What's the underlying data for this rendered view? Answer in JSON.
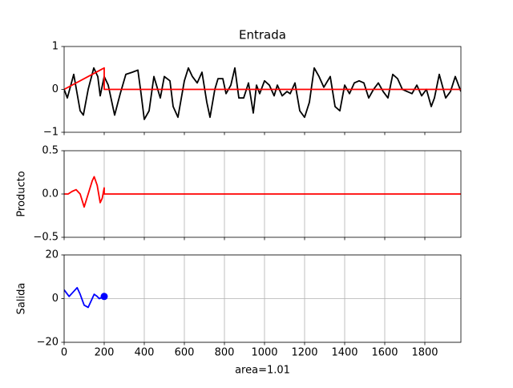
{
  "chart_data": [
    {
      "type": "line",
      "title": "Entrada",
      "xlim": [
        0,
        1980
      ],
      "xticks": [
        0,
        200,
        400,
        600,
        800,
        1000,
        1200,
        1400,
        1600,
        1800
      ],
      "show_xticklabels": false,
      "ylim": [
        -1,
        1
      ],
      "yticks": [
        {
          "value": -1,
          "label": "−1"
        },
        0,
        1
      ],
      "grid": "none",
      "series": [
        {
          "color": "#000000",
          "x": [
            0,
            16,
            48,
            80,
            96,
            120,
            148,
            168,
            180,
            200,
            220,
            252,
            280,
            308,
            340,
            368,
            384,
            400,
            424,
            448,
            480,
            500,
            528,
            544,
            568,
            600,
            620,
            640,
            664,
            688,
            712,
            728,
            752,
            768,
            792,
            808,
            832,
            852,
            872,
            896,
            920,
            944,
            960,
            976,
            1000,
            1024,
            1048,
            1064,
            1088,
            1112,
            1128,
            1152,
            1176,
            1200,
            1224,
            1248,
            1272,
            1296,
            1328,
            1352,
            1376,
            1400,
            1424,
            1448,
            1472,
            1496,
            1520,
            1544,
            1568,
            1592,
            1616,
            1640,
            1664,
            1688,
            1712,
            1736,
            1760,
            1784,
            1808,
            1832,
            1848,
            1872,
            1904,
            1928,
            1952,
            1980
          ],
          "values": [
            0,
            -0.2,
            0.35,
            -0.5,
            -0.6,
            0,
            0.5,
            0.3,
            -0.15,
            0.3,
            0.1,
            -0.6,
            -0.1,
            0.35,
            0.4,
            0.45,
            -0.1,
            -0.7,
            -0.5,
            0.3,
            -0.2,
            0.3,
            0.2,
            -0.4,
            -0.65,
            0.2,
            0.5,
            0.3,
            0.15,
            0.4,
            -0.3,
            -0.65,
            0,
            0.25,
            0.25,
            -0.1,
            0.1,
            0.5,
            -0.2,
            -0.2,
            0.15,
            -0.55,
            0.1,
            -0.1,
            0.2,
            0.1,
            -0.15,
            0.1,
            -0.15,
            -0.05,
            -0.1,
            0.15,
            -0.5,
            -0.65,
            -0.3,
            0.5,
            0.3,
            0.05,
            0.3,
            -0.4,
            -0.5,
            0.1,
            -0.1,
            0.15,
            0.2,
            0.15,
            -0.2,
            0,
            0.15,
            -0.05,
            -0.2,
            0.35,
            0.25,
            0,
            -0.05,
            -0.1,
            0.1,
            -0.15,
            0,
            -0.4,
            -0.2,
            0.35,
            -0.2,
            -0.05,
            0.3,
            -0.05
          ]
        },
        {
          "color": "#ff0000",
          "x": [
            0,
            200,
            200,
            1980
          ],
          "values": [
            0,
            0.5,
            0,
            0
          ]
        }
      ]
    },
    {
      "type": "line",
      "ylabel": "Producto",
      "xlim": [
        0,
        1980
      ],
      "xticks": [
        0,
        200,
        400,
        600,
        800,
        1000,
        1200,
        1400,
        1600,
        1800
      ],
      "show_xticklabels": false,
      "ylim": [
        -0.5,
        0.5
      ],
      "yticks": [
        {
          "value": -0.5,
          "label": "−0.5"
        },
        {
          "value": 0,
          "label": "0.0"
        },
        {
          "value": 0.5,
          "label": "0.5"
        }
      ],
      "grid": "x",
      "series": [
        {
          "color": "#ff0000",
          "x": [
            0,
            20,
            40,
            60,
            80,
            100,
            120,
            140,
            150,
            165,
            180,
            190,
            200,
            200,
            1980
          ],
          "values": [
            0,
            0,
            0.03,
            0.05,
            0,
            -0.15,
            0,
            0.15,
            0.2,
            0.1,
            -0.1,
            -0.05,
            0.07,
            0,
            0
          ]
        }
      ]
    },
    {
      "type": "line",
      "ylabel": "Salida",
      "xlabel": "area=1.01",
      "xlim": [
        0,
        1980
      ],
      "xticks": [
        0,
        200,
        400,
        600,
        800,
        1000,
        1200,
        1400,
        1600,
        1800
      ],
      "show_xticklabels": true,
      "ylim": [
        -20,
        20
      ],
      "yticks": [
        {
          "value": -20,
          "label": "−20"
        },
        0,
        20
      ],
      "grid": "both",
      "series": [
        {
          "color": "#0000ff",
          "end_marker": true,
          "x": [
            0,
            25,
            45,
            65,
            80,
            100,
            120,
            135,
            150,
            165,
            175,
            200
          ],
          "values": [
            4,
            1,
            3,
            5,
            2,
            -3,
            -4,
            -1,
            2,
            1,
            0,
            1
          ]
        }
      ]
    }
  ]
}
